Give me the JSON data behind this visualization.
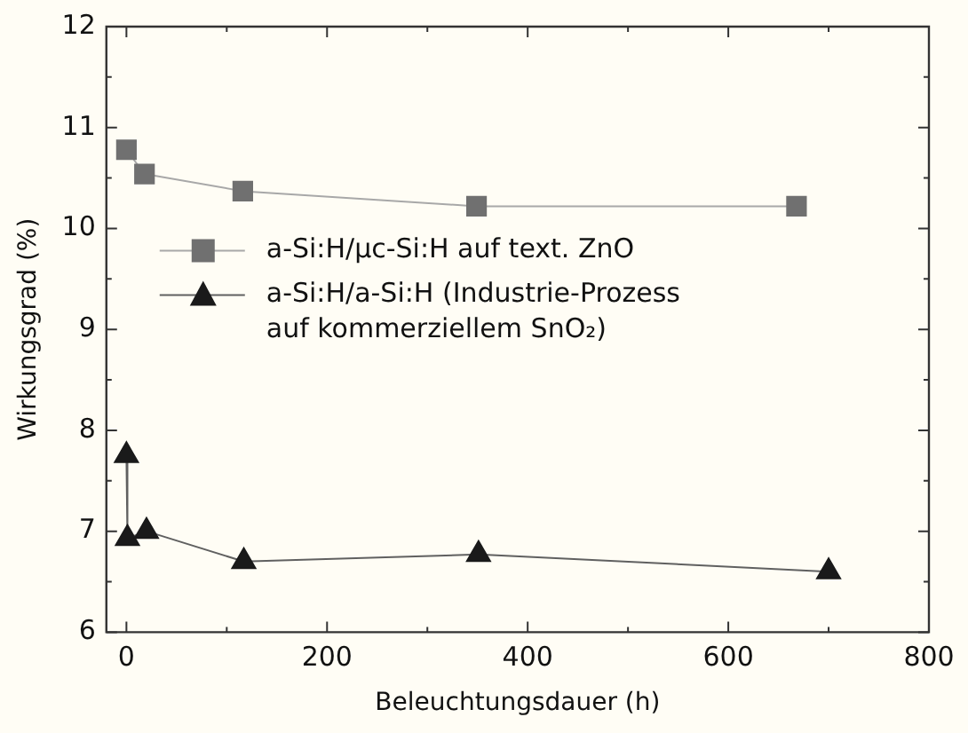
{
  "chart_data": {
    "type": "line",
    "xlabel": "Beleuchtungsdauer (h)",
    "ylabel": "Wirkungsgrad (%)",
    "xlim": [
      -20,
      800
    ],
    "xticks": [
      0,
      200,
      400,
      600,
      800
    ],
    "ylim": [
      6,
      12
    ],
    "yticks": [
      6,
      7,
      8,
      9,
      10,
      11,
      12
    ],
    "grid": false,
    "legend": "left",
    "line_style": "solid",
    "series": [
      {
        "name": "a-Si:H/µc-Si:H auf text. ZnO",
        "color": "#707070",
        "marker": "square",
        "x": [
          0,
          18,
          116,
          349,
          668
        ],
        "values": [
          10.78,
          10.54,
          10.37,
          10.22,
          10.22
        ]
      },
      {
        "name": "a-Si:H/a-Si:H (Industrie-Prozess auf kommerziellem SnO₂)",
        "color": "#1a1a1a",
        "marker": "triangle",
        "x": [
          0,
          1,
          20,
          117,
          351,
          700
        ],
        "values": [
          7.75,
          6.93,
          7.0,
          6.7,
          6.77,
          6.6
        ]
      }
    ]
  }
}
